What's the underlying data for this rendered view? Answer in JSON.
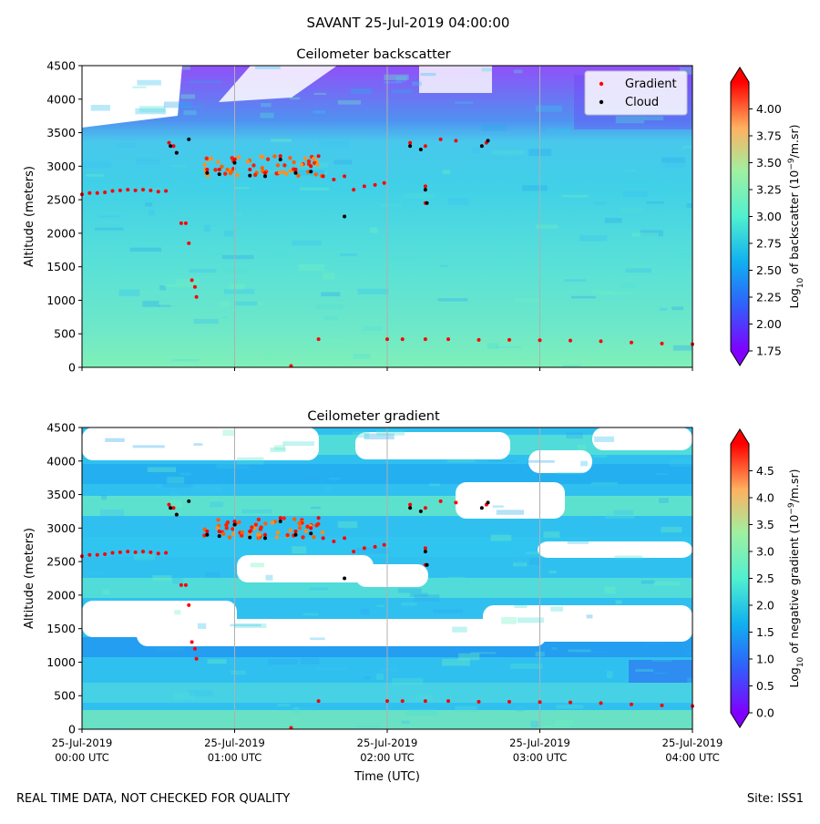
{
  "title": "SAVANT 25-Jul-2019 04:00:00",
  "footer_left": "REAL TIME DATA, NOT CHECKED FOR QUALITY",
  "footer_right": "Site: ISS1",
  "chart_data": [
    {
      "type": "heatmap",
      "title": "Ceilometer backscatter",
      "ylabel": "Altitude (meters)",
      "xlabel": "",
      "ylim": [
        0,
        4500
      ],
      "yticks": [
        0,
        500,
        1000,
        1500,
        2000,
        2500,
        3000,
        3500,
        4000,
        4500
      ],
      "xrange_hours": [
        0,
        4
      ],
      "xticks": [
        {
          "date": "25-Jul-2019",
          "time": "00:00 UTC"
        },
        {
          "date": "25-Jul-2019",
          "time": "01:00 UTC"
        },
        {
          "date": "25-Jul-2019",
          "time": "02:00 UTC"
        },
        {
          "date": "25-Jul-2019",
          "time": "03:00 UTC"
        },
        {
          "date": "25-Jul-2019",
          "time": "04:00 UTC"
        }
      ],
      "grid": "vertical",
      "colormap": "rainbow",
      "colorbar": {
        "label_prefix": "Log",
        "label_sub": "10",
        "label_mid": " of backscatter (10",
        "label_sup": "−9",
        "label_suffix": "/m.sr)",
        "range": [
          1.75,
          4.25
        ],
        "ticks": [
          "1.75",
          "2.00",
          "2.25",
          "2.50",
          "2.75",
          "3.00",
          "3.25",
          "3.50",
          "3.75",
          "4.00"
        ]
      },
      "legend": {
        "position": "top-right",
        "entries": [
          {
            "label": "Gradient",
            "color": "#ff0000"
          },
          {
            "label": "Cloud",
            "color": "#000000"
          }
        ]
      },
      "gradient_points": [
        {
          "t": 0.0,
          "alt": 2580
        },
        {
          "t": 0.05,
          "alt": 2600
        },
        {
          "t": 0.1,
          "alt": 2600
        },
        {
          "t": 0.15,
          "alt": 2610
        },
        {
          "t": 0.2,
          "alt": 2630
        },
        {
          "t": 0.25,
          "alt": 2640
        },
        {
          "t": 0.3,
          "alt": 2650
        },
        {
          "t": 0.35,
          "alt": 2640
        },
        {
          "t": 0.4,
          "alt": 2650
        },
        {
          "t": 0.45,
          "alt": 2640
        },
        {
          "t": 0.5,
          "alt": 2620
        },
        {
          "t": 0.55,
          "alt": 2630
        },
        {
          "t": 0.57,
          "alt": 3350
        },
        {
          "t": 0.6,
          "alt": 3300
        },
        {
          "t": 0.62,
          "alt": 3200
        },
        {
          "t": 0.65,
          "alt": 2150
        },
        {
          "t": 0.68,
          "alt": 2150
        },
        {
          "t": 0.7,
          "alt": 1850
        },
        {
          "t": 0.72,
          "alt": 1300
        },
        {
          "t": 0.74,
          "alt": 1200
        },
        {
          "t": 0.75,
          "alt": 1050
        },
        {
          "t": 0.82,
          "alt": 2950
        },
        {
          "t": 0.9,
          "alt": 2950
        },
        {
          "t": 1.0,
          "alt": 3100
        },
        {
          "t": 1.1,
          "alt": 2950
        },
        {
          "t": 1.2,
          "alt": 2900
        },
        {
          "t": 1.3,
          "alt": 3150
        },
        {
          "t": 1.4,
          "alt": 2950
        },
        {
          "t": 1.5,
          "alt": 3000
        },
        {
          "t": 1.55,
          "alt": 3150
        },
        {
          "t": 1.58,
          "alt": 2850
        },
        {
          "t": 1.65,
          "alt": 2800
        },
        {
          "t": 1.72,
          "alt": 2850
        },
        {
          "t": 1.78,
          "alt": 2650
        },
        {
          "t": 1.85,
          "alt": 2700
        },
        {
          "t": 1.92,
          "alt": 2720
        },
        {
          "t": 1.98,
          "alt": 2750
        },
        {
          "t": 1.55,
          "alt": 420
        },
        {
          "t": 2.0,
          "alt": 420
        },
        {
          "t": 2.1,
          "alt": 420
        },
        {
          "t": 2.15,
          "alt": 3350
        },
        {
          "t": 2.25,
          "alt": 3300
        },
        {
          "t": 2.25,
          "alt": 2700
        },
        {
          "t": 2.25,
          "alt": 2450
        },
        {
          "t": 2.35,
          "alt": 3400
        },
        {
          "t": 2.45,
          "alt": 3380
        },
        {
          "t": 2.65,
          "alt": 3350
        },
        {
          "t": 2.25,
          "alt": 420
        },
        {
          "t": 2.4,
          "alt": 420
        },
        {
          "t": 2.6,
          "alt": 410
        },
        {
          "t": 2.8,
          "alt": 410
        },
        {
          "t": 3.0,
          "alt": 405
        },
        {
          "t": 3.2,
          "alt": 400
        },
        {
          "t": 3.4,
          "alt": 390
        },
        {
          "t": 3.6,
          "alt": 370
        },
        {
          "t": 3.8,
          "alt": 355
        },
        {
          "t": 4.0,
          "alt": 345
        },
        {
          "t": 1.37,
          "alt": 20
        }
      ],
      "cloud_points": [
        {
          "t": 0.58,
          "alt": 3300
        },
        {
          "t": 0.62,
          "alt": 3200
        },
        {
          "t": 0.7,
          "alt": 3400
        },
        {
          "t": 0.82,
          "alt": 2900
        },
        {
          "t": 0.9,
          "alt": 2880
        },
        {
          "t": 1.0,
          "alt": 3050
        },
        {
          "t": 1.1,
          "alt": 2860
        },
        {
          "t": 1.2,
          "alt": 2850
        },
        {
          "t": 1.3,
          "alt": 3100
        },
        {
          "t": 1.4,
          "alt": 2900
        },
        {
          "t": 1.5,
          "alt": 2920
        },
        {
          "t": 1.72,
          "alt": 2250
        },
        {
          "t": 2.15,
          "alt": 3300
        },
        {
          "t": 2.22,
          "alt": 3250
        },
        {
          "t": 2.25,
          "alt": 2650
        },
        {
          "t": 2.26,
          "alt": 2450
        },
        {
          "t": 2.62,
          "alt": 3300
        },
        {
          "t": 2.66,
          "alt": 3380
        }
      ]
    },
    {
      "type": "heatmap",
      "title": "Ceilometer gradient",
      "ylabel": "Altitude (meters)",
      "xlabel": "Time (UTC)",
      "ylim": [
        0,
        4500
      ],
      "yticks": [
        0,
        500,
        1000,
        1500,
        2000,
        2500,
        3000,
        3500,
        4000,
        4500
      ],
      "xrange_hours": [
        0,
        4
      ],
      "xticks": [
        {
          "date": "25-Jul-2019",
          "time": "00:00 UTC"
        },
        {
          "date": "25-Jul-2019",
          "time": "01:00 UTC"
        },
        {
          "date": "25-Jul-2019",
          "time": "02:00 UTC"
        },
        {
          "date": "25-Jul-2019",
          "time": "03:00 UTC"
        },
        {
          "date": "25-Jul-2019",
          "time": "04:00 UTC"
        }
      ],
      "grid": "vertical",
      "colormap": "rainbow",
      "colorbar": {
        "label_prefix": "Log",
        "label_sub": "10",
        "label_mid": " of negative gradient (10",
        "label_sup": "−9",
        "label_suffix": "/m.sr)",
        "range": [
          0.0,
          5.0
        ],
        "ticks": [
          "0.0",
          "0.5",
          "1.0",
          "1.5",
          "2.0",
          "2.5",
          "3.0",
          "3.5",
          "4.0",
          "4.5"
        ]
      },
      "gradient_points": "same as backscatter panel",
      "cloud_points": "same as backscatter panel"
    }
  ]
}
